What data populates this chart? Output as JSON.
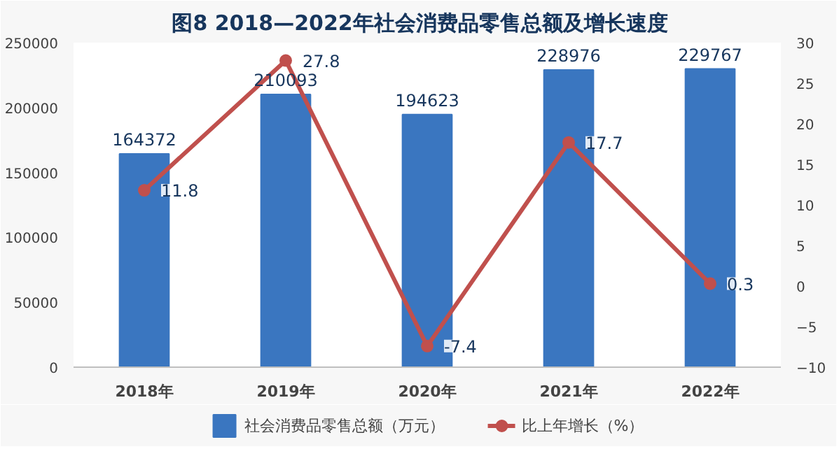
{
  "chart_data": {
    "type": "bar",
    "title": "图8   2018—2022年社会消费品零售总额及增长速度",
    "categories": [
      "2018年",
      "2019年",
      "2020年",
      "2021年",
      "2022年"
    ],
    "series": [
      {
        "name": "社会消费品零售总额（万元）",
        "color": "#3a76c0",
        "values": [
          164372,
          210093,
          194623,
          228976,
          229767
        ]
      },
      {
        "name": "比上年增长（%）",
        "type": "line",
        "axis": "y2",
        "color": "#c0504d",
        "values": [
          11.8,
          27.8,
          -7.4,
          17.7,
          0.3
        ]
      }
    ],
    "ylim": [
      0,
      250000
    ],
    "yticks": [
      0,
      50000,
      100000,
      150000,
      200000,
      250000
    ],
    "y2lim": [
      -10,
      30
    ],
    "y2ticks": [
      -10,
      -5,
      0,
      5,
      10,
      15,
      20,
      25,
      30
    ],
    "data_labels": true,
    "legend": "bottom",
    "marker": "circle",
    "line_style": "solid",
    "grid": false
  }
}
